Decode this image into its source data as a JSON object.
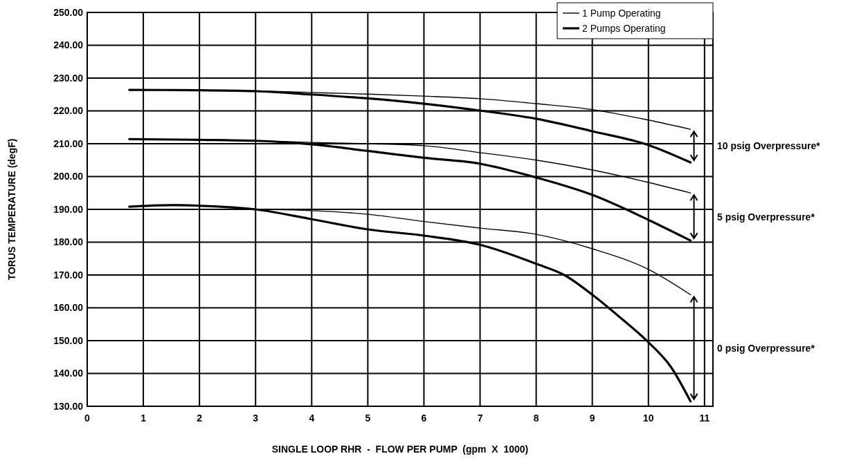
{
  "chart_data": {
    "type": "line",
    "xlabel": "SINGLE LOOP RHR  -  FLOW PER PUMP  (gpm  X  1000)",
    "ylabel": "TORUS TEMPERATURE (degF)",
    "xlim": [
      0,
      11.15
    ],
    "xticks": [
      0,
      1,
      2,
      3,
      4,
      5,
      6,
      7,
      8,
      9,
      10,
      11
    ],
    "ylim": [
      130,
      250
    ],
    "yticks": [
      {
        "value": 130,
        "label": "130.00"
      },
      {
        "value": 140,
        "label": "140.00"
      },
      {
        "value": 150,
        "label": "150.00"
      },
      {
        "value": 160,
        "label": "160.00"
      },
      {
        "value": 170,
        "label": "170.00"
      },
      {
        "value": 180,
        "label": "180.00"
      },
      {
        "value": 190,
        "label": "190.00"
      },
      {
        "value": 200,
        "label": "200.00"
      },
      {
        "value": 210,
        "label": "210.00"
      },
      {
        "value": 220,
        "label": "220.00"
      },
      {
        "value": 230,
        "label": "230.00"
      },
      {
        "value": 240,
        "label": "240.00"
      },
      {
        "value": 250,
        "label": "250.00"
      }
    ],
    "grid": true,
    "legend": "top right",
    "marker": "none",
    "line_style": "solid",
    "series": [
      {
        "name": "1 Pump Operating",
        "color": "#000000",
        "x": [
          0.75,
          2,
          3,
          4,
          5,
          6,
          7,
          8,
          9,
          10,
          10.75
        ],
        "values": [
          226.4,
          226.3,
          226.1,
          225.6,
          225.1,
          224.5,
          223.7,
          222.2,
          220.4,
          217.2,
          214.4
        ]
      },
      {
        "name": "2 Pumps Operating",
        "color": "#000000",
        "x": [
          0.75,
          2,
          3,
          4,
          5,
          6,
          7,
          8,
          9,
          10,
          10.75
        ],
        "values": [
          226.4,
          226.3,
          226,
          225,
          223.8,
          222.2,
          220.1,
          217.6,
          213.8,
          209.6,
          204.3
        ]
      },
      {
        "color": "#000000",
        "x": [
          0.75,
          2,
          3,
          4,
          5,
          6,
          7,
          8,
          9,
          10,
          10.75
        ],
        "values": [
          211.4,
          211.2,
          210.9,
          210.4,
          210,
          209.4,
          207.3,
          205,
          202,
          198.2,
          195
        ]
      },
      {
        "color": "#000000",
        "x": [
          0.75,
          2,
          3,
          4,
          5,
          6,
          7,
          8,
          9,
          10,
          10.75
        ],
        "values": [
          211.4,
          211.2,
          210.9,
          209.8,
          207.8,
          205.7,
          203.9,
          199.7,
          194.4,
          186.8,
          180.5
        ]
      },
      {
        "color": "#000000",
        "x": [
          0.25,
          1,
          2,
          3,
          4,
          5,
          6,
          7,
          8,
          9,
          10,
          10.75
        ],
        "values": [
          190,
          190,
          190,
          190,
          189.6,
          188.5,
          186.3,
          184.3,
          182.4,
          178,
          171.7,
          164
        ]
      },
      {
        "color": "#000000",
        "x": [
          0.75,
          1.5,
          2,
          3,
          4,
          5,
          6,
          7,
          8,
          8.5,
          9,
          9.5,
          10,
          10.4,
          10.75
        ],
        "values": [
          190.8,
          191.3,
          191.1,
          190,
          187,
          183.9,
          182,
          179.2,
          173.4,
          170,
          164,
          157,
          149.5,
          142,
          131.5
        ]
      }
    ],
    "annotations": [
      "10 psig Overpressure*",
      "5 psig Overpressure*",
      "0 psig Overpressure*"
    ]
  }
}
